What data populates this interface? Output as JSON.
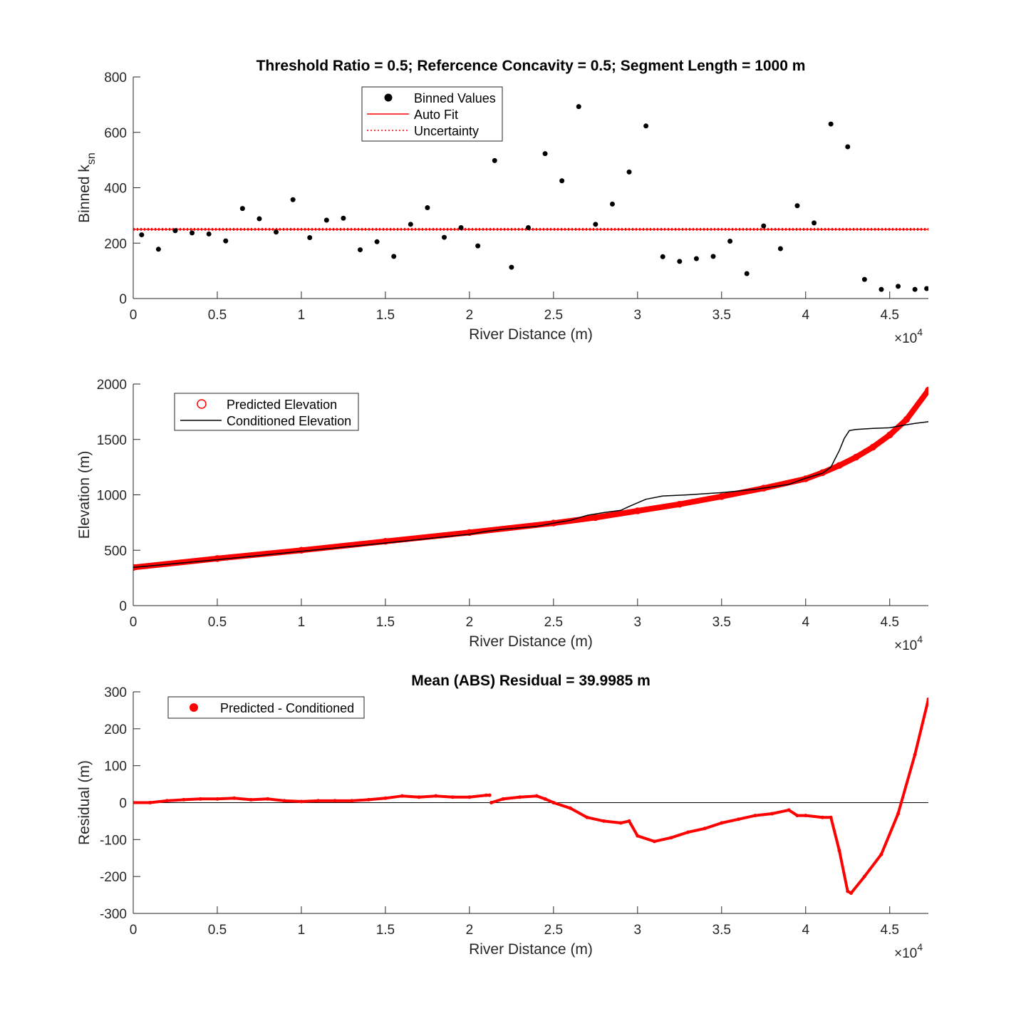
{
  "figure": {
    "panels": [
      "ksn",
      "elevation",
      "residual"
    ]
  },
  "chart_data": [
    {
      "id": "ksn",
      "type": "scatter",
      "title": "Threshold Ratio = 0.5; Refercence Concavity = 0.5; Segment Length = 1000 m",
      "xlabel": "River Distance (m)",
      "ylabel": "Binned k",
      "ylabel_sub": "sn",
      "x_exponent_label": "×10",
      "x_exponent": "4",
      "xlim": [
        0,
        47300
      ],
      "ylim": [
        0,
        800
      ],
      "xticks": [
        0,
        5000,
        10000,
        15000,
        20000,
        25000,
        30000,
        35000,
        40000,
        45000
      ],
      "xtick_labels": [
        "0",
        "0.5",
        "1",
        "1.5",
        "2",
        "2.5",
        "3",
        "3.5",
        "4",
        "4.5"
      ],
      "yticks": [
        0,
        200,
        400,
        600,
        800
      ],
      "ytick_labels": [
        "0",
        "200",
        "400",
        "600",
        "800"
      ],
      "legend_position": "top-center",
      "legend": [
        "Binned Values",
        "Auto Fit",
        "Uncertainty"
      ],
      "series": [
        {
          "name": "Binned Values",
          "marker": "dot",
          "color": "#000000",
          "x": [
            500,
            1500,
            2500,
            3500,
            4500,
            5500,
            6500,
            7500,
            8500,
            9500,
            10500,
            11500,
            12500,
            13500,
            14500,
            15500,
            16500,
            17500,
            18500,
            19500,
            20500,
            21500,
            22500,
            23500,
            24500,
            25500,
            26500,
            27500,
            28500,
            29500,
            30500,
            31500,
            32500,
            33500,
            34500,
            35500,
            36500,
            37500,
            38500,
            39500,
            40500,
            41500,
            42500,
            43500,
            44500,
            45500,
            46500,
            47200
          ],
          "y": [
            230,
            178,
            245,
            237,
            233,
            208,
            325,
            288,
            240,
            357,
            220,
            283,
            290,
            176,
            205,
            152,
            268,
            328,
            221,
            256,
            190,
            498,
            113,
            256,
            523,
            425,
            693,
            268,
            341,
            457,
            623,
            151,
            134,
            144,
            152,
            207,
            90,
            262,
            180,
            335,
            273,
            630,
            548,
            69,
            33,
            44,
            33,
            36
          ]
        },
        {
          "name": "Auto Fit",
          "line": "solid",
          "color": "#ff0000",
          "value": 250
        },
        {
          "name": "Uncertainty",
          "line": "dotted",
          "color": "#ff0000",
          "values": [
            247,
            253
          ]
        }
      ]
    },
    {
      "id": "elevation",
      "type": "line",
      "title": "",
      "xlabel": "River Distance (m)",
      "ylabel": "Elevation (m)",
      "x_exponent_label": "×10",
      "x_exponent": "4",
      "xlim": [
        0,
        47300
      ],
      "ylim": [
        0,
        2000
      ],
      "xticks": [
        0,
        5000,
        10000,
        15000,
        20000,
        25000,
        30000,
        35000,
        40000,
        45000
      ],
      "xtick_labels": [
        "0",
        "0.5",
        "1",
        "1.5",
        "2",
        "2.5",
        "3",
        "3.5",
        "4",
        "4.5"
      ],
      "yticks": [
        0,
        500,
        1000,
        1500,
        2000
      ],
      "ytick_labels": [
        "0",
        "500",
        "1000",
        "1500",
        "2000"
      ],
      "legend_position": "top-left",
      "legend": [
        "Predicted Elevation",
        "Conditioned Elevation"
      ],
      "series": [
        {
          "name": "Predicted Elevation",
          "marker": "circle",
          "color": "#ff0000",
          "x": [
            0,
            5000,
            10000,
            15000,
            20000,
            25000,
            27500,
            30000,
            32500,
            35000,
            37500,
            40000,
            41000,
            42000,
            43000,
            44000,
            45000,
            46000,
            47300
          ],
          "y": [
            345,
            425,
            500,
            580,
            660,
            745,
            795,
            855,
            915,
            985,
            1060,
            1145,
            1200,
            1265,
            1340,
            1430,
            1540,
            1680,
            1945
          ]
        },
        {
          "name": "Conditioned Elevation",
          "line": "solid",
          "color": "#000000",
          "x": [
            0,
            5000,
            10000,
            15000,
            20000,
            21000,
            22000,
            24000,
            25000,
            26000,
            27000,
            28000,
            29000,
            29500,
            30500,
            31500,
            33000,
            35000,
            37000,
            39000,
            40000,
            41000,
            41500,
            42000,
            42300,
            42600,
            43000,
            44000,
            45000,
            45500,
            46500,
            47300
          ],
          "y": [
            345,
            415,
            490,
            565,
            645,
            670,
            690,
            715,
            745,
            770,
            815,
            840,
            860,
            895,
            960,
            990,
            1000,
            1020,
            1050,
            1095,
            1150,
            1195,
            1250,
            1400,
            1510,
            1580,
            1590,
            1600,
            1605,
            1620,
            1645,
            1660
          ]
        }
      ]
    },
    {
      "id": "residual",
      "type": "scatter",
      "title": "Mean (ABS) Residual = 39.9985 m",
      "xlabel": "River Distance (m)",
      "ylabel": "Residual (m)",
      "x_exponent_label": "×10",
      "x_exponent": "4",
      "xlim": [
        0,
        47300
      ],
      "ylim": [
        -300,
        300
      ],
      "xticks": [
        0,
        5000,
        10000,
        15000,
        20000,
        25000,
        30000,
        35000,
        40000,
        45000
      ],
      "xtick_labels": [
        "0",
        "0.5",
        "1",
        "1.5",
        "2",
        "2.5",
        "3",
        "3.5",
        "4",
        "4.5"
      ],
      "yticks": [
        -300,
        -200,
        -100,
        0,
        100,
        200,
        300
      ],
      "ytick_labels": [
        "-300",
        "-200",
        "-100",
        "0",
        "100",
        "200",
        "300"
      ],
      "legend_position": "top-left",
      "legend": [
        "Predicted - Conditioned"
      ],
      "reference_line": 0,
      "series": [
        {
          "name": "Predicted - Conditioned",
          "marker": "dot",
          "color": "#ff0000",
          "x": [
            0,
            1000,
            2000,
            3000,
            4000,
            5000,
            6000,
            7000,
            8000,
            9000,
            10000,
            11000,
            12000,
            13000,
            14000,
            15000,
            16000,
            17000,
            18000,
            19000,
            20000,
            21000,
            21200,
            21300,
            22000,
            23000,
            24000,
            24500,
            25000,
            26000,
            27000,
            28000,
            29000,
            29500,
            30000,
            31000,
            32000,
            33000,
            34000,
            35000,
            36000,
            37000,
            38000,
            39000,
            39500,
            40000,
            41000,
            41500,
            42000,
            42500,
            42700,
            43500,
            44500,
            45500,
            46500,
            47300
          ],
          "y": [
            0,
            0,
            5,
            8,
            10,
            10,
            12,
            8,
            10,
            5,
            3,
            5,
            5,
            5,
            8,
            12,
            18,
            15,
            18,
            15,
            15,
            20,
            20,
            0,
            10,
            15,
            18,
            10,
            0,
            -15,
            -40,
            -50,
            -55,
            -50,
            -90,
            -105,
            -95,
            -80,
            -70,
            -55,
            -45,
            -35,
            -30,
            -20,
            -35,
            -35,
            -40,
            -40,
            -130,
            -240,
            -245,
            -200,
            -140,
            -30,
            130,
            280
          ]
        }
      ]
    }
  ]
}
